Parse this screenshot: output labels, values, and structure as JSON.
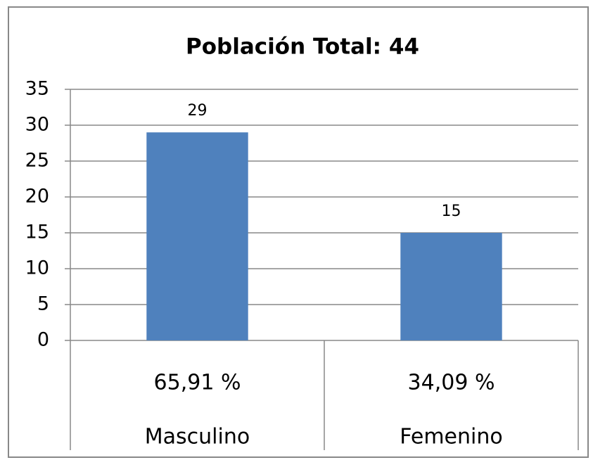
{
  "chart_data": {
    "type": "bar",
    "title": "Población Total: 44",
    "categories": [
      "Masculino",
      "Femenino"
    ],
    "values": [
      29,
      15
    ],
    "color": "#4f81bd",
    "data_table_row": [
      "65,91 %",
      "34,09 %"
    ],
    "ylim": [
      0,
      35
    ],
    "yticks": [
      0,
      5,
      10,
      15,
      20,
      25,
      30,
      35
    ],
    "grid": true
  }
}
